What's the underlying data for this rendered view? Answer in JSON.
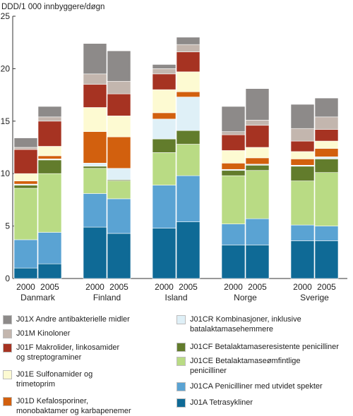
{
  "chart_data": {
    "type": "bar",
    "stacked": true,
    "ylabel": "DDD/1 000 innbyggere/døgn",
    "ylim": [
      0,
      25
    ],
    "yticks": [
      0,
      5,
      10,
      15,
      20,
      25
    ],
    "grid": false,
    "legend_position": "bottom",
    "groups": [
      {
        "name": "Danmark",
        "years": [
          "2000",
          "2005"
        ]
      },
      {
        "name": "Finland",
        "years": [
          "2000",
          "2005"
        ]
      },
      {
        "name": "Island",
        "years": [
          "2000",
          "2005"
        ]
      },
      {
        "name": "Norge",
        "years": [
          "2000",
          "2005"
        ]
      },
      {
        "name": "Sverige",
        "years": [
          "2000",
          "2005"
        ]
      }
    ],
    "categories": [
      "Danmark 2000",
      "Danmark 2005",
      "Finland 2000",
      "Finland 2005",
      "Island 2000",
      "Island 2005",
      "Norge 2000",
      "Norge 2005",
      "Sverige 2000",
      "Sverige 2005"
    ],
    "series": [
      {
        "name": "J01A Tetrasykliner",
        "color": "#0f6a96",
        "values": [
          1.0,
          1.4,
          4.9,
          4.3,
          4.8,
          5.4,
          3.2,
          3.2,
          3.6,
          3.6
        ]
      },
      {
        "name": "J01CA Penicilliner med utvidet spekter",
        "color": "#5aa3d3",
        "values": [
          2.7,
          3.0,
          3.2,
          3.3,
          4.1,
          4.4,
          2.0,
          2.5,
          1.5,
          1.4
        ]
      },
      {
        "name": "J01CE Betalaktamaseømfintlige penicilliner",
        "color": "#b9db84",
        "values": [
          4.9,
          5.6,
          2.4,
          1.7,
          3.1,
          3.0,
          4.6,
          4.6,
          4.2,
          5.1
        ]
      },
      {
        "name": "J01CF Betalaktamaseresistente penicilliner",
        "color": "#627c2c",
        "values": [
          0.3,
          1.3,
          0.2,
          0.1,
          1.3,
          1.3,
          0.5,
          0.5,
          1.4,
          1.3
        ]
      },
      {
        "name": "J01CR Kombinasjoner, inklusive batalaktamasehemmere",
        "color": "#dff0f7",
        "values": [
          0.1,
          0.1,
          0.3,
          1.1,
          1.9,
          3.2,
          0.1,
          0.1,
          0.1,
          0.2
        ]
      },
      {
        "name": "J01D Kefalosporiner, monobaktamer og karbapenemer",
        "color": "#d2600e",
        "values": [
          0.3,
          0.3,
          3.0,
          3.0,
          0.6,
          0.5,
          0.6,
          0.6,
          0.6,
          0.8
        ]
      },
      {
        "name": "J01E Sulfonamider og trimetoprim",
        "color": "#fdfad2",
        "values": [
          0.7,
          0.9,
          2.3,
          2.0,
          2.2,
          1.9,
          1.2,
          1.0,
          0.7,
          0.7
        ]
      },
      {
        "name": "J01F Makrolider, linkosamider og streptograminer",
        "color": "#a63322",
        "values": [
          2.3,
          2.4,
          2.2,
          2.1,
          1.5,
          1.9,
          1.5,
          2.1,
          1.0,
          1.1
        ]
      },
      {
        "name": "J01M Kinoloner",
        "color": "#c3b6ae",
        "values": [
          0.2,
          0.4,
          1.0,
          1.2,
          0.5,
          0.7,
          0.3,
          0.5,
          1.2,
          1.2
        ]
      },
      {
        "name": "J01X Andre antibakterielle midler",
        "color": "#8d8a89",
        "values": [
          0.9,
          1.0,
          2.9,
          2.9,
          0.4,
          0.7,
          2.4,
          3.0,
          2.3,
          1.8
        ]
      }
    ]
  },
  "legend": [
    {
      "label": "J01X Andre antibakterielle midler",
      "color": "#8d8a89"
    },
    {
      "label": "J01M Kinoloner",
      "color": "#c3b6ae"
    },
    {
      "label": "J01F Makrolider, linkosamider\nog streptograminer",
      "color": "#a63322"
    },
    {
      "label": "J01E Sulfonamider og\ntrimetoprim",
      "color": "#fdfad2"
    },
    {
      "label": "J01D Kefalosporiner,\nmonobaktamer og karbapenemer",
      "color": "#d2600e"
    },
    {
      "label": "J01CR Kombinasjoner, inklusive\nbatalaktamasehemmere",
      "color": "#dff0f7"
    },
    {
      "label": "J01CF Betalaktamaseresistente penicilliner",
      "color": "#627c2c"
    },
    {
      "label": "J01CE Betalaktamaseømfintlige\npenicilliner",
      "color": "#b9db84"
    },
    {
      "label": "J01CA Penicilliner med utvidet spekter",
      "color": "#5aa3d3"
    },
    {
      "label": "J01A Tetrasykliner",
      "color": "#0f6a96"
    }
  ]
}
